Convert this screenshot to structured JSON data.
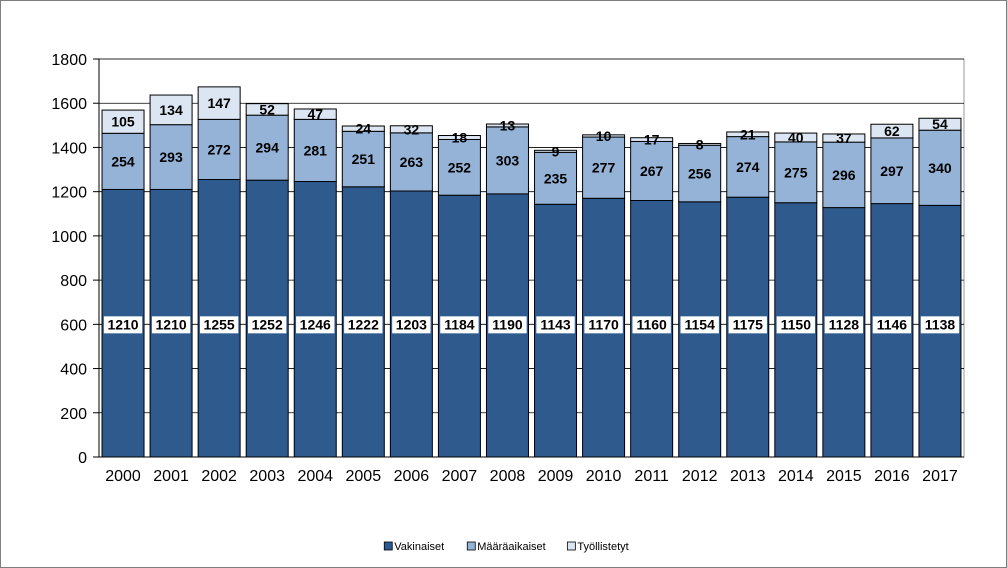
{
  "chart_data": {
    "type": "bar",
    "stacked": true,
    "categories": [
      "2000",
      "2001",
      "2002",
      "2003",
      "2004",
      "2005",
      "2006",
      "2007",
      "2008",
      "2009",
      "2010",
      "2011",
      "2012",
      "2013",
      "2014",
      "2015",
      "2016",
      "2017"
    ],
    "series": [
      {
        "name": "Vakinaiset",
        "color": "#2e5a8e",
        "values": [
          1210,
          1210,
          1255,
          1252,
          1246,
          1222,
          1203,
          1184,
          1190,
          1143,
          1170,
          1160,
          1154,
          1175,
          1150,
          1128,
          1146,
          1138
        ]
      },
      {
        "name": "Määräaikaiset",
        "color": "#95b3d7",
        "values": [
          254,
          293,
          272,
          294,
          281,
          251,
          263,
          252,
          303,
          235,
          277,
          267,
          256,
          274,
          275,
          296,
          297,
          340
        ]
      },
      {
        "name": "Työllistetyt",
        "color": "#dce6f2",
        "values": [
          105,
          134,
          147,
          52,
          47,
          24,
          32,
          18,
          13,
          9,
          10,
          17,
          8,
          21,
          40,
          37,
          62,
          54
        ]
      }
    ],
    "ylim": [
      0,
      1800
    ],
    "yticks": [
      0,
      200,
      400,
      600,
      800,
      1000,
      1200,
      1400,
      1600,
      1800
    ],
    "grid": true,
    "legend": "bottom-center"
  }
}
